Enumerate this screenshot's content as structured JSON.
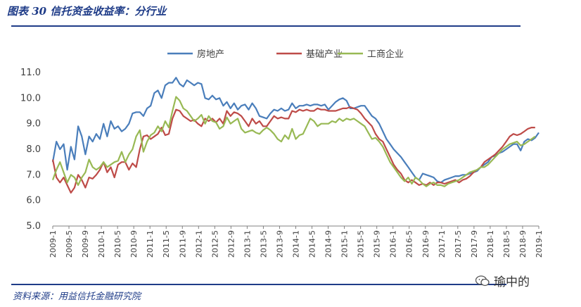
{
  "figure": {
    "title": "图表 30   信托资金收益率：分行业",
    "source": "资料来源：用益信托金融研究院",
    "watermark": "瑜中的"
  },
  "colors": {
    "frame": "#1f3c88",
    "series": [
      "#4a7ebb",
      "#be4b48",
      "#98b954"
    ]
  },
  "chart_data": {
    "type": "line",
    "title": "",
    "xlabel": "",
    "ylabel": "",
    "ylim": [
      5.0,
      11.0
    ],
    "yticks": [
      "5.0",
      "6.0",
      "7.0",
      "8.0",
      "9.0",
      "10.0",
      "11.0"
    ],
    "xticks": [
      "2009-1",
      "2009-5",
      "2009-9",
      "2010-1",
      "2010-5",
      "2010-9",
      "2011-1",
      "2011-5",
      "2011-9",
      "2012-1",
      "2012-5",
      "2012-9",
      "2013-1",
      "2013-5",
      "2013-9",
      "2014-1",
      "2014-5",
      "2014-9",
      "2015-1",
      "2015-5",
      "2015-9",
      "2016-1",
      "2016-5",
      "2016-9",
      "2017-1",
      "2017-5",
      "2017-9",
      "2018-1",
      "2018-5",
      "2018-9",
      "2019-1"
    ],
    "x_start": "2009-1",
    "x_end": "2019-1",
    "frequency": "monthly",
    "grid": false,
    "legend": "top",
    "series": [
      {
        "name": "房地产",
        "values": [
          7.5,
          8.3,
          8.0,
          8.2,
          7.2,
          8.1,
          7.6,
          8.9,
          8.5,
          7.8,
          8.5,
          8.3,
          8.6,
          8.4,
          9.0,
          8.5,
          9.1,
          8.8,
          8.9,
          8.7,
          8.8,
          9.0,
          9.4,
          9.45,
          9.45,
          9.3,
          9.6,
          9.7,
          10.2,
          10.3,
          10.0,
          10.5,
          10.6,
          10.6,
          10.8,
          10.55,
          10.45,
          10.7,
          10.6,
          10.5,
          10.6,
          10.55,
          10.0,
          9.95,
          10.1,
          9.95,
          10.0,
          9.7,
          9.85,
          9.6,
          9.8,
          9.55,
          9.7,
          9.75,
          9.55,
          9.8,
          9.6,
          9.3,
          9.25,
          9.2,
          9.4,
          9.55,
          9.5,
          9.6,
          9.5,
          9.55,
          9.8,
          9.6,
          9.7,
          9.7,
          9.75,
          9.7,
          9.75,
          9.75,
          9.7,
          9.75,
          9.55,
          9.7,
          9.85,
          9.95,
          10.0,
          9.9,
          9.6,
          9.6,
          9.65,
          9.7,
          9.7,
          9.5,
          9.3,
          9.2,
          9.0,
          8.7,
          8.4,
          8.2,
          8.0,
          7.85,
          7.7,
          7.5,
          7.3,
          7.1,
          6.9,
          6.8,
          7.05,
          7.0,
          6.95,
          6.9,
          6.75,
          6.7,
          6.8,
          6.85,
          6.9,
          6.95,
          6.95,
          7.0,
          7.0,
          7.05,
          7.1,
          7.15,
          7.3,
          7.4,
          7.5,
          7.7,
          7.75,
          7.85,
          7.9,
          8.0,
          8.1,
          8.2,
          8.2,
          7.95,
          8.3,
          8.4,
          8.35,
          8.45,
          8.65
        ]
      },
      {
        "name": "基础产业",
        "values": [
          7.6,
          6.9,
          6.7,
          6.9,
          6.6,
          6.3,
          6.5,
          7.0,
          6.8,
          6.5,
          6.9,
          6.85,
          7.0,
          7.2,
          7.5,
          7.1,
          7.3,
          6.9,
          7.4,
          7.5,
          7.5,
          7.2,
          7.45,
          7.3,
          8.0,
          8.5,
          8.55,
          8.4,
          8.5,
          8.6,
          8.85,
          8.55,
          8.6,
          9.2,
          9.55,
          9.5,
          9.3,
          9.2,
          9.1,
          9.15,
          9.0,
          8.9,
          9.2,
          9.1,
          9.2,
          9.05,
          9.2,
          9.0,
          9.5,
          9.3,
          9.45,
          9.4,
          9.3,
          9.1,
          8.9,
          9.2,
          9.0,
          9.1,
          8.9,
          8.9,
          9.1,
          9.3,
          9.2,
          9.25,
          9.2,
          9.2,
          9.5,
          9.45,
          9.55,
          9.5,
          9.55,
          9.5,
          9.5,
          9.6,
          9.55,
          9.55,
          9.5,
          9.5,
          9.5,
          9.55,
          9.6,
          9.6,
          9.65,
          9.6,
          9.55,
          9.4,
          9.2,
          9.05,
          8.9,
          8.6,
          8.4,
          8.3,
          8.0,
          7.7,
          7.4,
          7.2,
          7.05,
          6.8,
          6.7,
          6.8,
          6.7,
          6.6,
          6.65,
          6.6,
          6.7,
          6.6,
          6.7,
          6.7,
          6.65,
          6.7,
          6.75,
          6.8,
          6.7,
          6.8,
          6.85,
          6.95,
          7.1,
          7.2,
          7.3,
          7.5,
          7.6,
          7.7,
          7.8,
          7.95,
          8.1,
          8.3,
          8.5,
          8.6,
          8.55,
          8.6,
          8.7,
          8.8,
          8.85,
          8.85
        ]
      },
      {
        "name": "工商企业",
        "values": [
          6.8,
          7.2,
          7.5,
          7.1,
          6.7,
          7.0,
          6.9,
          6.6,
          6.9,
          7.1,
          7.6,
          7.3,
          7.2,
          7.3,
          7.5,
          7.3,
          7.4,
          7.5,
          7.55,
          7.9,
          7.5,
          7.8,
          8.0,
          8.5,
          8.75,
          7.9,
          8.3,
          8.55,
          8.65,
          8.9,
          8.7,
          9.1,
          8.85,
          9.5,
          10.05,
          9.9,
          9.6,
          9.5,
          9.3,
          9.1,
          9.2,
          9.35,
          9.0,
          9.3,
          9.1,
          9.05,
          8.8,
          8.9,
          9.25,
          9.0,
          9.1,
          9.2,
          8.8,
          8.65,
          8.7,
          8.75,
          8.65,
          8.6,
          8.75,
          8.85,
          8.75,
          8.6,
          8.4,
          8.3,
          8.55,
          8.4,
          8.8,
          8.4,
          8.55,
          8.6,
          8.9,
          9.2,
          9.1,
          8.9,
          9.0,
          9.0,
          9.0,
          9.1,
          9.05,
          9.2,
          9.1,
          9.2,
          9.15,
          9.2,
          9.1,
          9.0,
          8.9,
          8.65,
          8.4,
          8.45,
          8.3,
          8.1,
          7.8,
          7.5,
          7.3,
          7.1,
          6.9,
          6.75,
          6.9,
          6.65,
          6.9,
          6.8,
          6.65,
          6.55,
          6.65,
          6.7,
          6.6,
          6.6,
          6.55,
          6.65,
          6.7,
          6.75,
          6.8,
          6.9,
          7.0,
          7.1,
          7.15,
          7.2,
          7.3,
          7.3,
          7.4,
          7.55,
          7.7,
          7.85,
          8.0,
          8.1,
          8.2,
          8.25,
          8.3,
          8.15,
          8.2,
          8.3,
          8.4,
          8.5
        ]
      }
    ]
  }
}
